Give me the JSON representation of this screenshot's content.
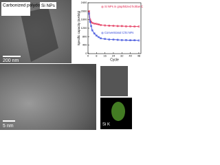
{
  "chart_data": {
    "type": "line",
    "x_label": "Cycle",
    "y_label": "Specific capacity (mAh/g)",
    "x": [
      1,
      2,
      3,
      4,
      6,
      8,
      10,
      12,
      16,
      20,
      24,
      28,
      32,
      36,
      40,
      44,
      48
    ],
    "series": [
      {
        "name": "Si NPs in graphitized hollow CNFs",
        "color": "#e0204a",
        "values": [
          2000,
          1600,
          1500,
          1450,
          1420,
          1400,
          1380,
          1350,
          1330,
          1320,
          1310,
          1300,
          1300,
          1290,
          1290,
          1280,
          1280
        ]
      },
      {
        "name": "Conventional C/Si NFs",
        "color": "#2a3fd8",
        "values": [
          1900,
          1500,
          1300,
          1100,
          950,
          850,
          780,
          720,
          690,
          670,
          660,
          650,
          640,
          640,
          630,
          630,
          620
        ]
      }
    ],
    "xlim": [
      0,
      50
    ],
    "xticks": [
      0,
      8,
      16,
      24,
      32,
      40,
      48
    ],
    "ylim": [
      0,
      2400
    ],
    "yticks": [
      0,
      400,
      800,
      1200,
      1600,
      2000,
      2400
    ]
  },
  "images": {
    "tem_top": {
      "label_1": "Carbonized polydopamine",
      "label_2": "Si NPs",
      "scale": "200 nm"
    },
    "tem_hr": {
      "scale": "5 nm"
    },
    "map": {
      "label": "Si K"
    }
  }
}
